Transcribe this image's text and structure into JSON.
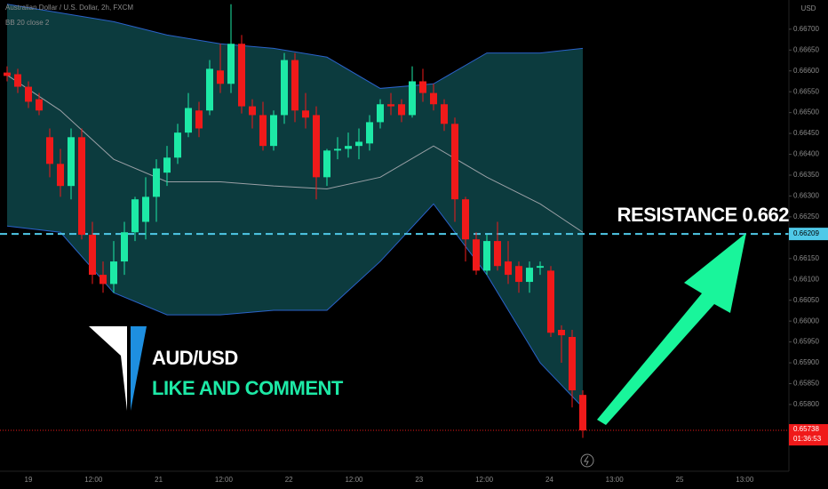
{
  "chart_data": {
    "type": "candlestick",
    "title": "Australian Dollar / U.S. Dollar, 2h, FXCM",
    "subtitle": "BB 20 close 2",
    "currency": "USD",
    "ylim": [
      0.6564,
      0.6677
    ],
    "yticks": [
      {
        "value": 0.667,
        "label": "0.66700"
      },
      {
        "value": 0.6665,
        "label": "0.66650"
      },
      {
        "value": 0.666,
        "label": "0.66600"
      },
      {
        "value": 0.6655,
        "label": "0.66550"
      },
      {
        "value": 0.665,
        "label": "0.66500"
      },
      {
        "value": 0.6645,
        "label": "0.66450"
      },
      {
        "value": 0.664,
        "label": "0.66400"
      },
      {
        "value": 0.6635,
        "label": "0.66350"
      },
      {
        "value": 0.663,
        "label": "0.66300"
      },
      {
        "value": 0.6625,
        "label": "0.66250"
      },
      {
        "value": 0.6615,
        "label": "0.66150"
      },
      {
        "value": 0.661,
        "label": "0.66100"
      },
      {
        "value": 0.6605,
        "label": "0.66050"
      },
      {
        "value": 0.66,
        "label": "0.66000"
      },
      {
        "value": 0.6595,
        "label": "0.65950"
      },
      {
        "value": 0.659,
        "label": "0.65900"
      },
      {
        "value": 0.6585,
        "label": "0.65850"
      },
      {
        "value": 0.658,
        "label": "0.65800"
      }
    ],
    "time_labels": [
      "19",
      "12:00",
      "21",
      "12:00",
      "22",
      "12:00",
      "23",
      "12:00",
      "24",
      "13:00",
      "25",
      "13:00"
    ],
    "up_color": "#1de9a6",
    "down_color": "#f01a1a",
    "ohlc": [
      [
        0.66596,
        0.66611,
        0.66575,
        0.66588
      ],
      [
        0.66592,
        0.66605,
        0.66547,
        0.66562
      ],
      [
        0.66562,
        0.66575,
        0.66511,
        0.66526
      ],
      [
        0.66532,
        0.66547,
        0.66494,
        0.66505
      ],
      [
        0.66441,
        0.66462,
        0.66345,
        0.66377
      ],
      [
        0.66377,
        0.66413,
        0.66298,
        0.66324
      ],
      [
        0.66324,
        0.66462,
        0.66292,
        0.66441
      ],
      [
        0.66441,
        0.66462,
        0.66196,
        0.66207
      ],
      [
        0.66207,
        0.66238,
        0.66089,
        0.66111
      ],
      [
        0.66111,
        0.66143,
        0.66068,
        0.66089
      ],
      [
        0.66089,
        0.66192,
        0.66068,
        0.66143
      ],
      [
        0.66143,
        0.66238,
        0.66111,
        0.66213
      ],
      [
        0.66213,
        0.66298,
        0.66192,
        0.66292
      ],
      [
        0.66238,
        0.66345,
        0.66196,
        0.66298
      ],
      [
        0.66298,
        0.66388,
        0.66238,
        0.66366
      ],
      [
        0.66356,
        0.6642,
        0.66324,
        0.66392
      ],
      [
        0.66392,
        0.66473,
        0.66377,
        0.66452
      ],
      [
        0.66452,
        0.66547,
        0.66441,
        0.66511
      ],
      [
        0.66505,
        0.66526,
        0.66441,
        0.66462
      ],
      [
        0.66505,
        0.66626,
        0.66494,
        0.66605
      ],
      [
        0.66601,
        0.66665,
        0.66547,
        0.66569
      ],
      [
        0.66569,
        0.6676,
        0.66547,
        0.66665
      ],
      [
        0.66665,
        0.66686,
        0.66498,
        0.66515
      ],
      [
        0.66515,
        0.66532,
        0.66462,
        0.66494
      ],
      [
        0.66494,
        0.66526,
        0.66409,
        0.6642
      ],
      [
        0.6642,
        0.66505,
        0.66409,
        0.66494
      ],
      [
        0.66494,
        0.66643,
        0.66473,
        0.66626
      ],
      [
        0.66626,
        0.66643,
        0.66477,
        0.66505
      ],
      [
        0.66505,
        0.66547,
        0.66462,
        0.66488
      ],
      [
        0.66494,
        0.66515,
        0.66292,
        0.66345
      ],
      [
        0.66345,
        0.66413,
        0.66324,
        0.66409
      ],
      [
        0.66409,
        0.66441,
        0.66388,
        0.66413
      ],
      [
        0.66413,
        0.66452,
        0.66392,
        0.6642
      ],
      [
        0.6642,
        0.66462,
        0.66388,
        0.6643
      ],
      [
        0.66426,
        0.66494,
        0.66409,
        0.66477
      ],
      [
        0.66477,
        0.66532,
        0.66462,
        0.6652
      ],
      [
        0.6652,
        0.66547,
        0.66494,
        0.66515
      ],
      [
        0.6652,
        0.66532,
        0.66477,
        0.66494
      ],
      [
        0.66494,
        0.66611,
        0.66488,
        0.66575
      ],
      [
        0.66575,
        0.66605,
        0.66526,
        0.66547
      ],
      [
        0.66547,
        0.66569,
        0.66505,
        0.6652
      ],
      [
        0.6652,
        0.66532,
        0.66456,
        0.66473
      ],
      [
        0.66473,
        0.66488,
        0.66238,
        0.66292
      ],
      [
        0.66292,
        0.66298,
        0.66143,
        0.66196
      ],
      [
        0.66196,
        0.66213,
        0.66111,
        0.66121
      ],
      [
        0.66121,
        0.66207,
        0.66111,
        0.66192
      ],
      [
        0.66192,
        0.66238,
        0.66121,
        0.66132
      ],
      [
        0.66143,
        0.66192,
        0.66089,
        0.66111
      ],
      [
        0.66132,
        0.66143,
        0.66068,
        0.66094
      ],
      [
        0.66094,
        0.66143,
        0.66068,
        0.66128
      ],
      [
        0.66128,
        0.66143,
        0.66111,
        0.66132
      ],
      [
        0.66121,
        0.66132,
        0.65962,
        0.65972
      ],
      [
        0.65979,
        0.6599,
        0.659,
        0.65966
      ],
      [
        0.65962,
        0.65979,
        0.65793,
        0.65834
      ],
      [
        0.65823,
        0.65834,
        0.6572,
        0.65738
      ]
    ],
    "bands": {
      "x": [
        0,
        5,
        10,
        15,
        20,
        25,
        30,
        35,
        40,
        45,
        50,
        54
      ],
      "upper": [
        0.6676,
        0.66739,
        0.66718,
        0.66686,
        0.66665,
        0.66654,
        0.66633,
        0.66558,
        0.66569,
        0.66643,
        0.66643,
        0.66654
      ],
      "middle": [
        0.6659,
        0.66505,
        0.66388,
        0.66334,
        0.66334,
        0.66324,
        0.66317,
        0.66345,
        0.6642,
        0.66345,
        0.66281,
        0.66213
      ],
      "lower": [
        0.66228,
        0.66213,
        0.66068,
        0.66015,
        0.66015,
        0.66026,
        0.66026,
        0.66143,
        0.66281,
        0.66111,
        0.659,
        0.65793
      ],
      "fill": "#0c3b3e",
      "edge": "#2a62c9",
      "mid_color": "#9aa0a6"
    },
    "resistance": 0.66209,
    "resistance_color": "#4fc9e8",
    "last_price": 0.65738,
    "countdown": "01:36:53",
    "annotations": {
      "resistance": "RESISTANCE  0.662",
      "pair": "AUD/USD",
      "call": "LIKE AND COMMENT"
    }
  }
}
